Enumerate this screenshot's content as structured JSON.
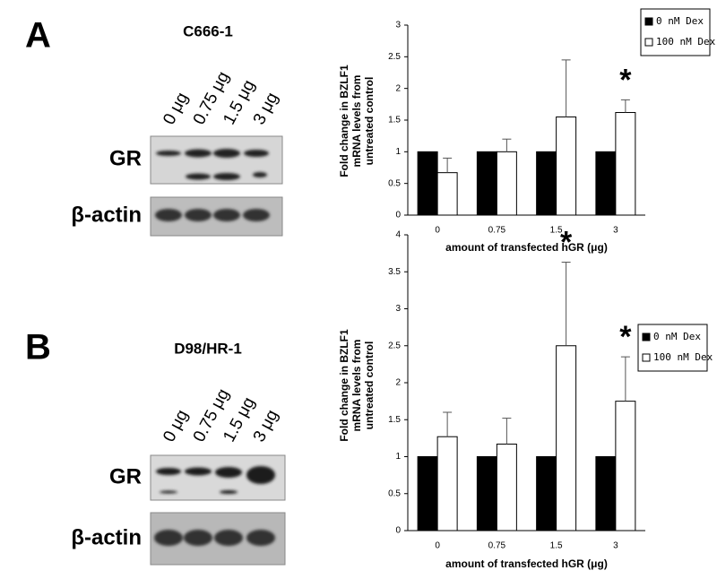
{
  "panels": [
    {
      "label": "A",
      "cell_line": "C666-1",
      "lanes": [
        "0 μg",
        "0.75 μg",
        "1.5 μg",
        "3 μg"
      ],
      "blots": [
        "GR",
        "β-actin"
      ]
    },
    {
      "label": "B",
      "cell_line": "D98/HR-1",
      "lanes": [
        "0 μg",
        "0.75 μg",
        "1.5 μg",
        "3 μg"
      ],
      "blots": [
        "GR",
        "β-actin"
      ]
    }
  ],
  "chart_data": [
    {
      "type": "bar",
      "y_label": [
        "Fold change in BZLF1",
        "mRNA levels from",
        "untreated control"
      ],
      "x_label": "amount of transfected hGR (μg)",
      "categories": [
        "0",
        "0.75",
        "1.5",
        "3"
      ],
      "series": [
        {
          "name": "0 nM Dex",
          "color": "#000000",
          "values": [
            1,
            1,
            1,
            1
          ]
        },
        {
          "name": "100 nM Dex",
          "color": "#ffffff",
          "values": [
            0.67,
            1,
            1.55,
            1.62
          ],
          "errors": [
            0.23,
            0.2,
            0.9,
            0.2
          ]
        }
      ],
      "ylim": [
        0,
        3
      ],
      "yticks": [
        0,
        0.5,
        1,
        1.5,
        2,
        2.5,
        3
      ],
      "legend": "upper right",
      "annotations": [
        {
          "text": "*",
          "x": "3"
        }
      ]
    },
    {
      "type": "bar",
      "y_label": [
        "Fold change in BZLF1",
        "mRNA levels from",
        "untreated control"
      ],
      "x_label": "amount of transfected hGR (μg)",
      "categories": [
        "0",
        "0.75",
        "1.5",
        "3"
      ],
      "series": [
        {
          "name": "0 nM Dex",
          "color": "#000000",
          "values": [
            1,
            1,
            1,
            1
          ]
        },
        {
          "name": "100 nM Dex",
          "color": "#ffffff",
          "values": [
            1.27,
            1.17,
            2.5,
            1.75
          ],
          "errors": [
            0.33,
            0.35,
            1.13,
            0.6
          ]
        }
      ],
      "ylim": [
        0,
        4
      ],
      "yticks": [
        0,
        0.5,
        1,
        1.5,
        2,
        2.5,
        3,
        3.5,
        4
      ],
      "legend": "upper right",
      "annotations": [
        {
          "text": "*",
          "x": "1.5"
        },
        {
          "text": "*",
          "x": "3"
        }
      ]
    }
  ]
}
